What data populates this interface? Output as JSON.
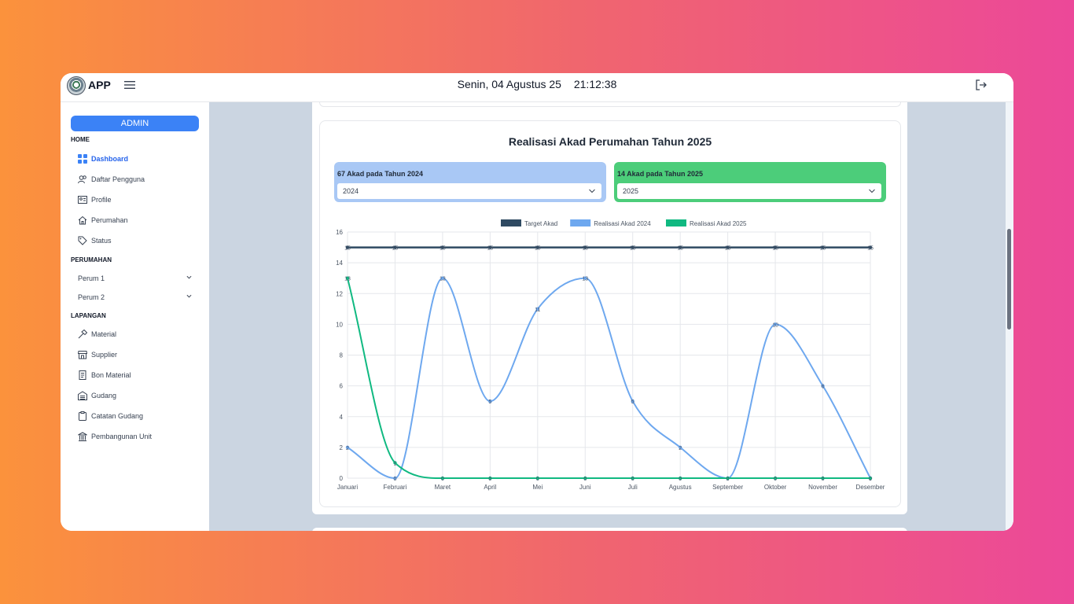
{
  "header": {
    "app_title": "APP",
    "date": "Senin, 04 Agustus 25",
    "time": "21:12:38"
  },
  "sidebar": {
    "role_badge": "ADMIN",
    "sections": {
      "home": "HOME",
      "perumahan": "PERUMAHAN",
      "lapangan": "LAPANGAN"
    },
    "home_items": [
      {
        "label": "Dashboard",
        "icon": "dashboard-icon",
        "active": true
      },
      {
        "label": "Daftar Pengguna",
        "icon": "users-icon"
      },
      {
        "label": "Profile",
        "icon": "id-card-icon"
      },
      {
        "label": "Perumahan",
        "icon": "house-icon"
      },
      {
        "label": "Status",
        "icon": "tag-icon"
      }
    ],
    "perumahan_items": [
      {
        "label": "Perum 1"
      },
      {
        "label": "Perum 2"
      }
    ],
    "lapangan_items": [
      {
        "label": "Material",
        "icon": "hammer-icon"
      },
      {
        "label": "Supplier",
        "icon": "store-icon"
      },
      {
        "label": "Bon Material",
        "icon": "receipt-icon"
      },
      {
        "label": "Gudang",
        "icon": "warehouse-icon"
      },
      {
        "label": "Catatan Gudang",
        "icon": "clipboard-icon"
      },
      {
        "label": "Pembangunan Unit",
        "icon": "building-icon"
      }
    ],
    "accent_color": "#3b82f6"
  },
  "main": {
    "card_title": "Realisasi Akad Perumahan Tahun 2025",
    "year_left": {
      "label": "67 Akad pada Tahun 2024",
      "selected": "2024"
    },
    "year_right": {
      "label": "14 Akad pada Tahun 2025",
      "selected": "2025"
    }
  },
  "chart_data": {
    "type": "line",
    "title": "",
    "categories": [
      "Januari",
      "Februari",
      "Maret",
      "April",
      "Mei",
      "Juni",
      "Juli",
      "Agustus",
      "September",
      "Oktober",
      "November",
      "Desember"
    ],
    "ylim": [
      0,
      16
    ],
    "yticks": [
      0,
      2,
      4,
      6,
      8,
      10,
      12,
      14,
      16
    ],
    "grid": true,
    "legend": "top-center",
    "series": [
      {
        "name": "Target Akad",
        "color": "#2f4a62",
        "values": [
          15,
          15,
          15,
          15,
          15,
          15,
          15,
          15,
          15,
          15,
          15,
          15
        ]
      },
      {
        "name": "Realisasi Akad 2024",
        "color": "#6ea8ef",
        "values": [
          2,
          0,
          13,
          5,
          11,
          13,
          5,
          2,
          0,
          10,
          6,
          0
        ]
      },
      {
        "name": "Realisasi Akad 2025",
        "color": "#10b981",
        "values": [
          13,
          1,
          0,
          0,
          0,
          0,
          0,
          0,
          0,
          0,
          0,
          0
        ]
      }
    ]
  }
}
